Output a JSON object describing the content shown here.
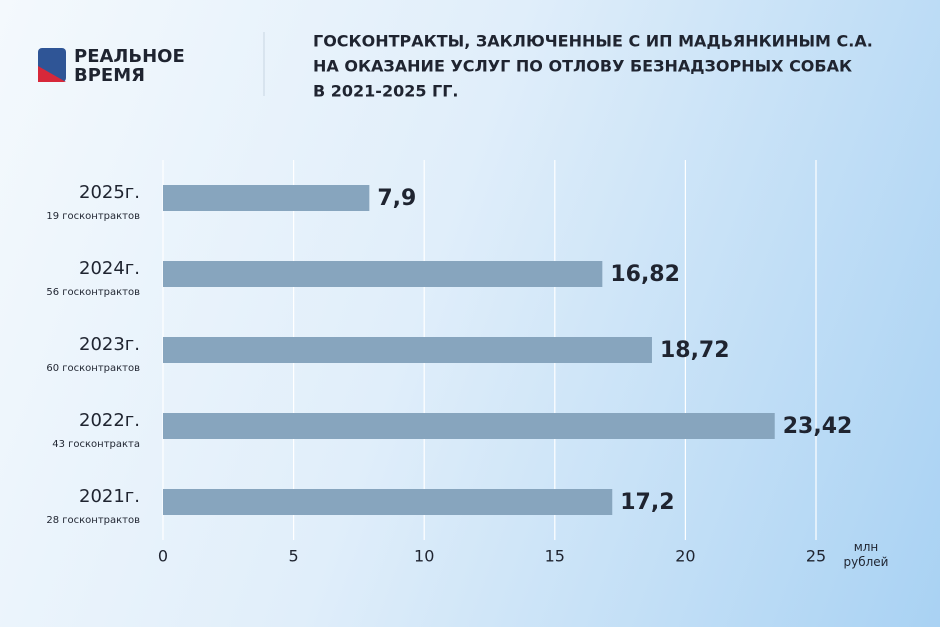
{
  "logo": {
    "line1": "РЕАЛЬНОЕ",
    "line2": "ВРЕМЯ"
  },
  "chart_data": {
    "type": "hbar",
    "title": [
      "ГОСКОНТРАКТЫ, ЗАКЛЮЧЕННЫЕ С  ИП МАДЬЯНКИНЫМ С.А.",
      "НА ОКАЗАНИЕ УСЛУГ ПО ОТЛОВУ БЕЗНАДЗОРНЫХ СОБАК",
      "В 2021-2025 ГГ."
    ],
    "categories": [
      "2025г.",
      "2024г.",
      "2023г.",
      "2022г.",
      "2021г."
    ],
    "category_notes": [
      "19 госконтрактов",
      "56 госконтрактов",
      "60 госконтрактов",
      "43 госконтракта",
      "28 госконтрактов"
    ],
    "values": [
      7.9,
      16.82,
      18.72,
      23.42,
      17.2
    ],
    "value_labels": [
      "7,9",
      "16,82",
      "18,72",
      "23,42",
      "17,2"
    ],
    "color": "#87a5be",
    "xlim": [
      0,
      25
    ],
    "xticks": [
      0,
      5,
      10,
      15,
      20,
      25
    ],
    "xlabel": "млн рублей",
    "grid": true
  }
}
